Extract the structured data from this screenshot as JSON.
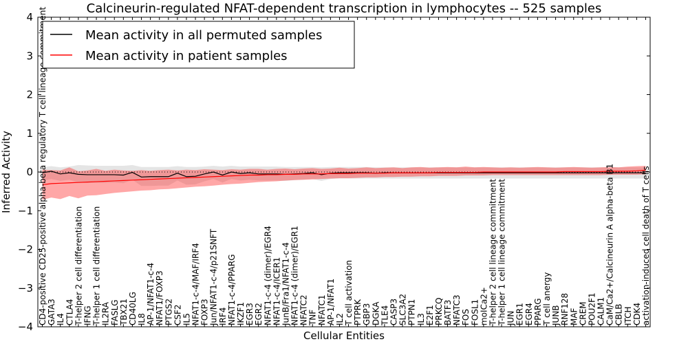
{
  "chart_data": {
    "type": "line",
    "title": "Calcineurin-regulated NFAT-dependent transcription in lymphocytes -- 525 samples",
    "xlabel": "Cellular Entities",
    "ylabel": "Inferred Activity",
    "ylim": [
      -4,
      4
    ],
    "yticks": [
      -4,
      -3,
      -2,
      -1,
      0,
      1,
      2,
      3,
      4
    ],
    "ytick_labels": [
      "−4",
      "−3",
      "−2",
      "−1",
      "0",
      "1",
      "2",
      "3",
      "4"
    ],
    "legend_position": "top-left",
    "categories": [
      "CD4-positive CD25-positive alpha-beta regulatory T cell lineage commitment",
      "GATA3",
      "IL4",
      "CTLA4",
      "T-helper 2 cell differentiation",
      "IFNG",
      "T-helper 1 cell differentiation",
      "IL2RA",
      "FASLG",
      "TBX21",
      "CD40LG",
      "IL8",
      "AP-1/NFAT1-c-4",
      "NFAT1/FOXP3",
      "PTGS2",
      "CSF2",
      "IL5",
      "NFAT1-c-4/MAF/IRF4",
      "FOXP3",
      "Jun/NFAT1-c-4/p21SNFT",
      "IRF4",
      "NFAT1-c-4/PPARG",
      "IKZF1",
      "EGR3",
      "EGR2",
      "NFAT1-c-4 (dimer)/EGR4",
      "NFAT1-c-4/ICER1",
      "JunB/Fra1/NFAT1-c-4",
      "NFAT1-c-4 (dimer)/EGR1",
      "NFATC2",
      "TNF",
      "NFATC1",
      "AP-1/NFAT1",
      "IL2",
      "T cell activation",
      "PTPRK",
      "GBP3",
      "DGKA",
      "TLE4",
      "CASP3",
      "SLC3A2",
      "PTPN1",
      "IL3",
      "E2F1",
      "PRKCQ",
      "BATF3",
      "NFATC3",
      "FOS",
      "FOSL1",
      "moICa2+",
      "T-helper 2 cell lineage commitment",
      "T-helper 1 cell lineage commitment",
      "JUN",
      "EGR1",
      "EGR4",
      "PPARG",
      "T cell anergy",
      "JUNB",
      "RNF128",
      "MAF",
      "CREM",
      "POU2F1",
      "CALM1",
      "CaM/Ca2+/Calcineurin A alpha-beta B1",
      "CBLB",
      "ITCH",
      "CDK4",
      "activation-induced cell death of T cells"
    ],
    "series": [
      {
        "name": "Mean activity in all permuted samples",
        "color": "#000000",
        "values": [
          -0.02,
          0.02,
          -0.05,
          -0.02,
          -0.06,
          -0.07,
          -0.07,
          -0.07,
          -0.07,
          -0.08,
          -0.01,
          -0.13,
          -0.12,
          -0.12,
          -0.12,
          -0.03,
          -0.12,
          -0.11,
          -0.05,
          0.0,
          -0.08,
          0.0,
          -0.04,
          -0.02,
          -0.05,
          -0.05,
          -0.05,
          -0.06,
          -0.05,
          -0.04,
          -0.02,
          -0.07,
          -0.03,
          -0.02,
          -0.02,
          -0.02,
          -0.02,
          -0.03,
          -0.02,
          -0.02,
          -0.02,
          -0.02,
          -0.02,
          -0.02,
          -0.02,
          -0.02,
          -0.02,
          -0.02,
          -0.02,
          -0.02,
          -0.02,
          -0.02,
          -0.02,
          -0.02,
          -0.02,
          -0.02,
          -0.02,
          -0.02,
          -0.02,
          -0.02,
          -0.02,
          -0.02,
          -0.02,
          -0.02,
          -0.02,
          -0.02,
          -0.02,
          -0.02
        ],
        "band_upper": [
          0.12,
          0.15,
          0.12,
          0.14,
          0.18,
          0.17,
          0.16,
          0.16,
          0.16,
          0.16,
          0.18,
          0.13,
          0.13,
          0.13,
          0.13,
          0.15,
          0.13,
          0.13,
          0.14,
          0.16,
          0.14,
          0.16,
          0.14,
          0.14,
          0.14,
          0.14,
          0.14,
          0.13,
          0.13,
          0.13,
          0.13,
          0.12,
          0.13,
          0.13,
          0.13,
          0.13,
          0.13,
          0.12,
          0.12,
          0.12,
          0.12,
          0.12,
          0.12,
          0.12,
          0.12,
          0.12,
          0.12,
          0.12,
          0.12,
          0.12,
          0.12,
          0.12,
          0.12,
          0.12,
          0.12,
          0.12,
          0.12,
          0.12,
          0.12,
          0.12,
          0.12,
          0.12,
          0.12,
          0.12,
          0.12,
          0.12,
          0.12,
          0.12
        ],
        "band_lower": [
          -0.22,
          -0.18,
          -0.23,
          -0.2,
          -0.27,
          -0.28,
          -0.28,
          -0.28,
          -0.27,
          -0.29,
          -0.2,
          -0.36,
          -0.36,
          -0.35,
          -0.35,
          -0.22,
          -0.33,
          -0.32,
          -0.24,
          -0.18,
          -0.27,
          -0.18,
          -0.22,
          -0.2,
          -0.22,
          -0.22,
          -0.22,
          -0.23,
          -0.21,
          -0.2,
          -0.18,
          -0.23,
          -0.18,
          -0.17,
          -0.17,
          -0.17,
          -0.17,
          -0.17,
          -0.17,
          -0.17,
          -0.17,
          -0.17,
          -0.17,
          -0.17,
          -0.17,
          -0.17,
          -0.17,
          -0.17,
          -0.17,
          -0.17,
          -0.17,
          -0.17,
          -0.17,
          -0.17,
          -0.17,
          -0.17,
          -0.17,
          -0.17,
          -0.17,
          -0.17,
          -0.17,
          -0.17,
          -0.17,
          -0.17,
          -0.17,
          -0.17,
          -0.17,
          -0.17
        ]
      },
      {
        "name": "Mean activity in patient samples",
        "color": "#ff0000",
        "values": [
          -0.33,
          -0.3,
          -0.29,
          -0.28,
          -0.27,
          -0.26,
          -0.25,
          -0.24,
          -0.23,
          -0.22,
          -0.21,
          -0.2,
          -0.19,
          -0.18,
          -0.17,
          -0.16,
          -0.15,
          -0.14,
          -0.13,
          -0.12,
          -0.11,
          -0.1,
          -0.09,
          -0.08,
          -0.08,
          -0.07,
          -0.07,
          -0.06,
          -0.06,
          -0.05,
          -0.05,
          -0.05,
          -0.04,
          -0.04,
          -0.04,
          -0.03,
          -0.03,
          -0.03,
          -0.03,
          -0.02,
          -0.02,
          -0.02,
          -0.02,
          -0.02,
          -0.01,
          -0.01,
          -0.01,
          -0.01,
          -0.01,
          0.0,
          0.0,
          0.0,
          0.0,
          0.0,
          0.0,
          0.0,
          0.0,
          0.0,
          0.01,
          0.01,
          0.01,
          0.01,
          0.01,
          0.02,
          0.02,
          0.02,
          0.03,
          0.05
        ],
        "band_upper": [
          0.06,
          0.05,
          0.04,
          0.12,
          0.02,
          0.04,
          0.08,
          0.03,
          0.06,
          0.04,
          0.03,
          0.05,
          0.03,
          0.05,
          0.06,
          0.04,
          0.06,
          0.05,
          0.07,
          0.06,
          0.05,
          0.07,
          0.06,
          0.08,
          0.08,
          0.06,
          0.08,
          0.09,
          0.07,
          0.09,
          0.1,
          0.08,
          0.09,
          0.11,
          0.09,
          0.1,
          0.12,
          0.1,
          0.11,
          0.12,
          0.1,
          0.12,
          0.13,
          0.11,
          0.12,
          0.13,
          0.12,
          0.14,
          0.12,
          0.13,
          0.12,
          0.11,
          0.12,
          0.11,
          0.12,
          0.13,
          0.12,
          0.11,
          0.12,
          0.13,
          0.12,
          0.11,
          0.12,
          0.13,
          0.12,
          0.14,
          0.15,
          0.16
        ],
        "band_lower": [
          -0.72,
          -0.66,
          -0.7,
          -0.62,
          -0.68,
          -0.61,
          -0.6,
          -0.57,
          -0.54,
          -0.52,
          -0.5,
          -0.48,
          -0.47,
          -0.45,
          -0.44,
          -0.42,
          -0.4,
          -0.38,
          -0.37,
          -0.35,
          -0.33,
          -0.31,
          -0.3,
          -0.28,
          -0.26,
          -0.25,
          -0.24,
          -0.22,
          -0.21,
          -0.2,
          -0.19,
          -0.18,
          -0.17,
          -0.16,
          -0.16,
          -0.15,
          -0.14,
          -0.14,
          -0.13,
          -0.13,
          -0.12,
          -0.12,
          -0.11,
          -0.11,
          -0.1,
          -0.1,
          -0.1,
          -0.09,
          -0.09,
          -0.09,
          -0.08,
          -0.08,
          -0.08,
          -0.08,
          -0.08,
          -0.08,
          -0.08,
          -0.08,
          -0.08,
          -0.08,
          -0.08,
          -0.08,
          -0.08,
          -0.07,
          -0.07,
          -0.07,
          -0.07,
          -0.06
        ]
      }
    ]
  }
}
